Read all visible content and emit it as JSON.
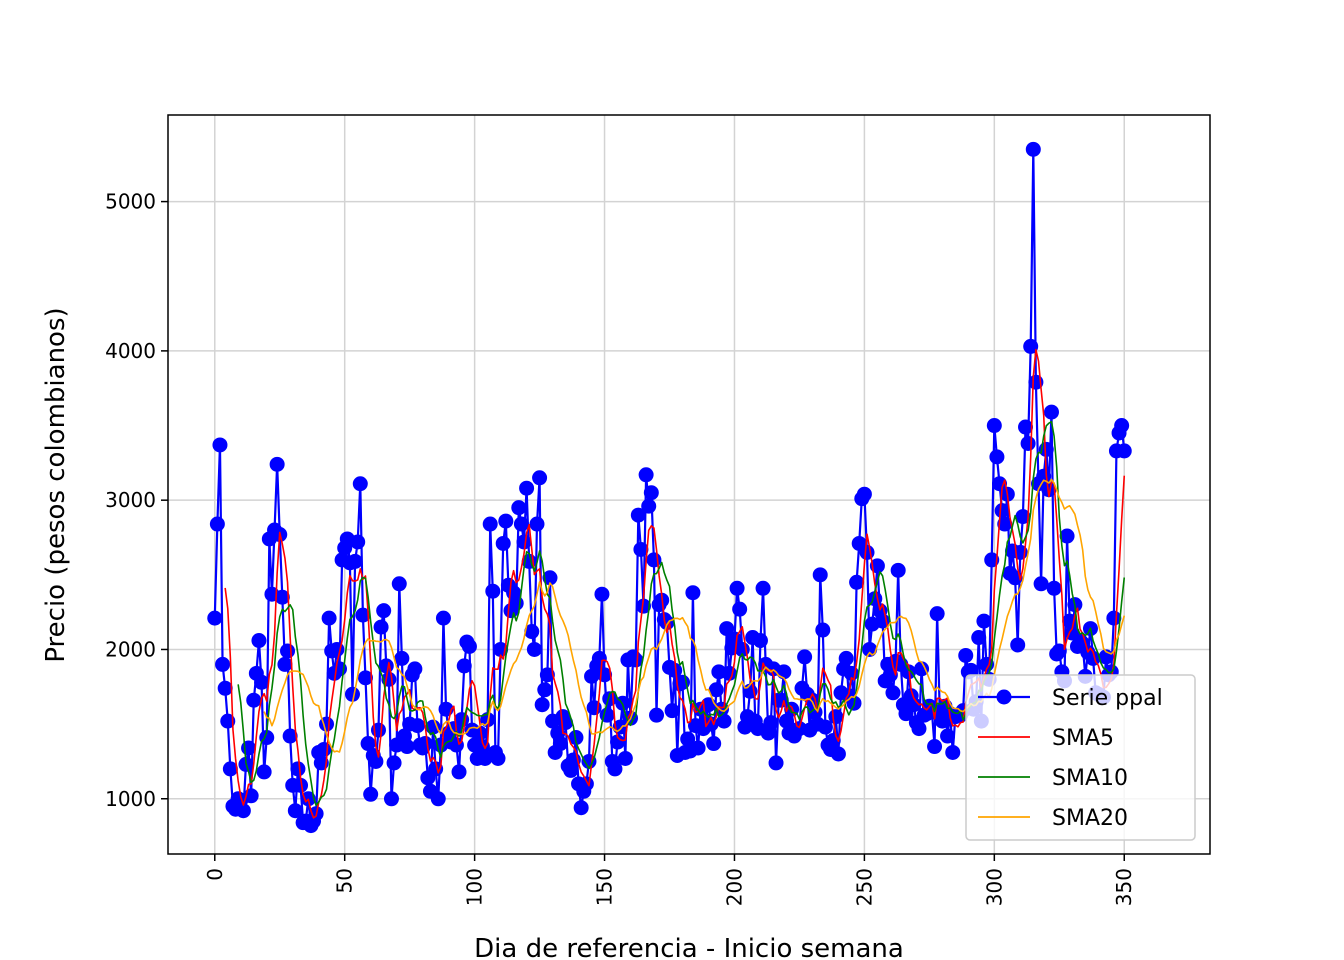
{
  "chart_data": {
    "type": "line",
    "title": "",
    "xlabel": "Dia de referencia - Inicio semana",
    "ylabel": "Precio (pesos colombianos)",
    "xlim": [
      -18,
      383
    ],
    "ylim": [
      630,
      5580
    ],
    "x_ticks": [
      0,
      50,
      100,
      150,
      200,
      250,
      300,
      350
    ],
    "y_ticks": [
      1000,
      2000,
      3000,
      4000,
      5000
    ],
    "grid": true,
    "legend_position": "lower right",
    "colors": {
      "main": "#0000ff",
      "sma5": "#ff0000",
      "sma10": "#008000",
      "sma20": "#ffa500"
    },
    "series": [
      {
        "name": "Serie ppal",
        "style": "line+markers",
        "x_start": 0,
        "values": [
          2210,
          2840,
          3370,
          1900,
          1740,
          1520,
          1200,
          950,
          930,
          1000,
          990,
          920,
          1230,
          1340,
          1020,
          1660,
          1840,
          2060,
          1780,
          1180,
          1410,
          2740,
          2370,
          2800,
          3240,
          2770,
          2350,
          1900,
          1990,
          1420,
          1090,
          920,
          1200,
          1090,
          840,
          850,
          1000,
          820,
          850,
          900,
          1310,
          1240,
          1330,
          1500,
          2210,
          1990,
          1840,
          2000,
          1870,
          2600,
          2680,
          2740,
          2580,
          1700,
          2590,
          2720,
          3110,
          2230,
          1810,
          1370,
          1030,
          1290,
          1250,
          1460,
          2150,
          2260,
          1890,
          1800,
          1000,
          1240,
          1360,
          2440,
          1940,
          1420,
          1350,
          1500,
          1830,
          1870,
          1490,
          1360,
          1340,
          1370,
          1140,
          1050,
          1480,
          1200,
          1000,
          1360,
          2210,
          1600,
          1440,
          1380,
          1470,
          1360,
          1180,
          1530,
          1890,
          2050,
          2020,
          1460,
          1360,
          1270,
          1440,
          1350,
          1270,
          1530,
          2840,
          2390,
          1310,
          1270,
          2000,
          2710,
          2860,
          2430,
          2260,
          2380,
          2310,
          2950,
          2840,
          2720,
          3080,
          2590,
          2120,
          2000,
          2840,
          3150,
          1630,
          1730,
          1830,
          2480,
          1520,
          1310,
          1440,
          1370,
          1550,
          1510,
          1220,
          1190,
          1260,
          1410,
          1100,
          940,
          1050,
          1100,
          1250,
          1820,
          1610,
          1890,
          1940,
          2370,
          1830,
          1560,
          1670,
          1250,
          1200,
          1380,
          1480,
          1640,
          1270,
          1930,
          1540,
          1950,
          1930,
          2900,
          2670,
          2290,
          3170,
          2960,
          3050,
          2600,
          1560,
          2300,
          2330,
          2200,
          2180,
          1880,
          1590,
          1860,
          1290,
          1770,
          1780,
          1310,
          1400,
          1320,
          2380,
          1490,
          1340,
          1600,
          1470,
          1520,
          1630,
          1500,
          1370,
          1730,
          1850,
          1600,
          1520,
          2140,
          1840,
          2010,
          2070,
          2410,
          2270,
          2000,
          1480,
          1550,
          1720,
          2080,
          1520,
          1470,
          2060,
          2410,
          1900,
          1440,
          1510,
          1870,
          1240,
          1660,
          1660,
          1850,
          1520,
          1440,
          1600,
          1420,
          1460,
          1470,
          1740,
          1950,
          1700,
          1460,
          1660,
          1580,
          1500,
          2500,
          2130,
          1480,
          1360,
          1330,
          1390,
          1550,
          1300,
          1710,
          1870,
          1940,
          1690,
          1840,
          1640,
          2450,
          2710,
          3010,
          3040,
          2650,
          2000,
          2170,
          2340,
          2560,
          2260,
          2190,
          1790,
          1900,
          1830,
          1710,
          1920,
          2530,
          1900,
          1630,
          1570,
          1850,
          1690,
          1630,
          1510,
          1470,
          1870,
          1560,
          1570,
          1620,
          1580,
          1350,
          2240,
          1580,
          1520,
          1620,
          1420,
          1570,
          1310,
          1550,
          1560,
          1560,
          1590,
          1960,
          1850,
          1860,
          1600,
          1650,
          2080,
          1520,
          2190,
          1900,
          1800,
          2600,
          3500,
          3290,
          3110,
          2930,
          2840,
          3040,
          2510,
          2660,
          2480,
          2030,
          2650,
          2890,
          3490,
          3380,
          4030,
          5350,
          3790,
          3110,
          2440,
          3160,
          3340,
          3070,
          3590,
          2410,
          1970,
          1990,
          1850,
          1790,
          2760,
          2190,
          2110,
          2300,
          2020,
          2060,
          2040,
          1820,
          1980,
          2140,
          1940,
          1710,
          1700,
          1690,
          1680,
          1950,
          1830,
          1850,
          2210,
          3330,
          3450,
          3500,
          3330
        ]
      },
      {
        "name": "SMA5",
        "style": "line",
        "window": 5
      },
      {
        "name": "SMA10",
        "style": "line",
        "window": 10
      },
      {
        "name": "SMA20",
        "style": "line",
        "window": 20
      }
    ]
  }
}
